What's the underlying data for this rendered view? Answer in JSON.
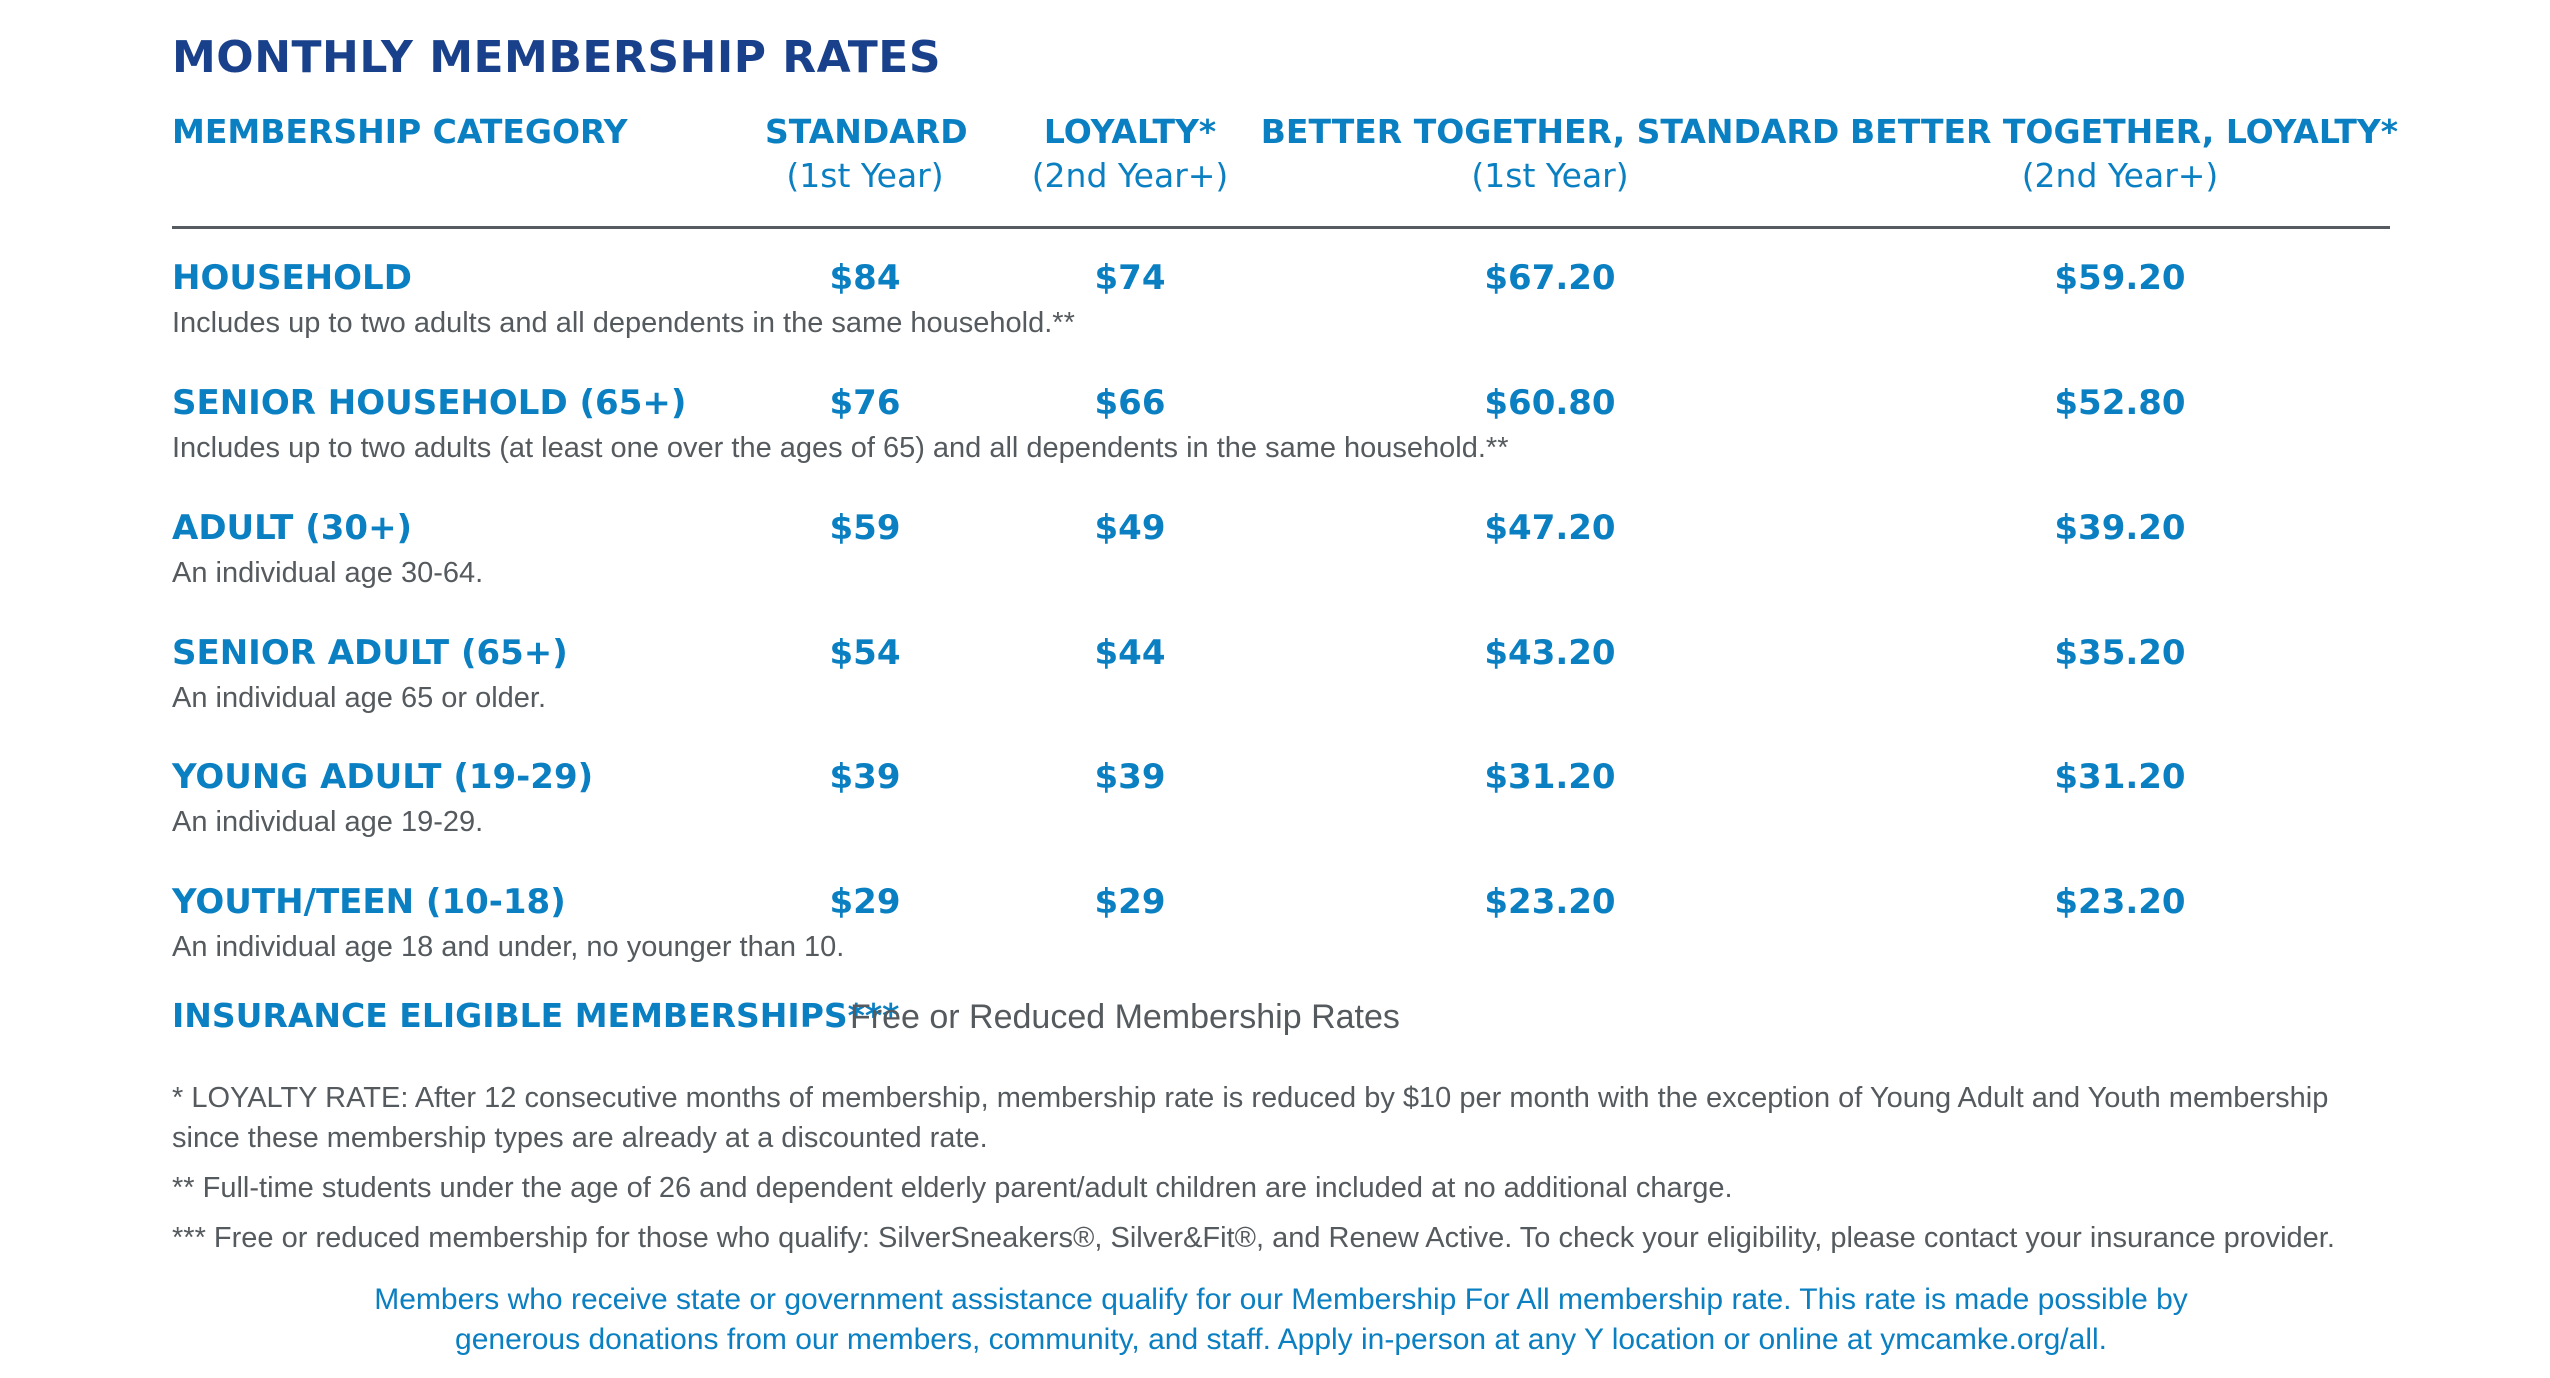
{
  "title": "MONTHLY MEMBERSHIP RATES",
  "headers": {
    "category": "MEMBERSHIP CATEGORY",
    "standard": "STANDARD",
    "standard_sub": "(1st Year)",
    "loyalty": "LOYALTY*",
    "loyalty_sub": "(2nd Year+)",
    "bt_standard": "BETTER TOGETHER, STANDARD",
    "bt_standard_sub": "(1st Year)",
    "bt_loyalty": "BETTER TOGETHER, LOYALTY*",
    "bt_loyalty_sub": "(2nd Year+)"
  },
  "rows": [
    {
      "name": "HOUSEHOLD",
      "desc": "Includes up to two adults and all dependents in the same household.**",
      "standard": "$84",
      "loyalty": "$74",
      "bt_standard": "$67.20",
      "bt_loyalty": "$59.20"
    },
    {
      "name": "SENIOR HOUSEHOLD (65+)",
      "desc": "Includes up to two adults (at least one over the ages of 65) and all dependents in the same household.**",
      "standard": "$76",
      "loyalty": "$66",
      "bt_standard": "$60.80",
      "bt_loyalty": "$52.80"
    },
    {
      "name": "ADULT (30+)",
      "desc": "An individual age 30-64.",
      "standard": "$59",
      "loyalty": "$49",
      "bt_standard": "$47.20",
      "bt_loyalty": "$39.20"
    },
    {
      "name": "SENIOR ADULT (65+)",
      "desc": "An individual age 65 or older.",
      "standard": "$54",
      "loyalty": "$44",
      "bt_standard": "$43.20",
      "bt_loyalty": "$35.20"
    },
    {
      "name": "YOUNG ADULT (19-29)",
      "desc": "An individual age 19-29.",
      "standard": "$39",
      "loyalty": "$39",
      "bt_standard": "$31.20",
      "bt_loyalty": "$31.20"
    },
    {
      "name": "YOUTH/TEEN (10-18)",
      "desc": "An individual age 18 and under, no younger than 10.",
      "standard": "$29",
      "loyalty": "$29",
      "bt_standard": "$23.20",
      "bt_loyalty": "$23.20"
    }
  ],
  "insurance": {
    "label": "INSURANCE ELIGIBLE MEMBERSHIPS***",
    "text": "Free or Reduced Membership Rates"
  },
  "notes": {
    "loyalty": "* LOYALTY RATE: After 12 consecutive months of membership, membership rate is reduced by $10 per month with the exception of Young Adult and Youth membership since these membership types are already at a discounted rate.",
    "students": "** Full-time students under the age of 26 and dependent elderly parent/adult children are included at no additional charge.",
    "insurance": "*** Free or reduced membership for those who qualify: SilverSneakers®, Silver&Fit®, and Renew Active. To check your eligibility, please contact your insurance provider."
  },
  "footer": {
    "line1": "Members who receive state or government assistance qualify for our Membership For All membership rate. This rate is made possible by",
    "line2": "generous donations from our members, community, and staff. Apply in-person at any Y location or online at ymcamke.org/all."
  },
  "colors": {
    "title": "#19408a",
    "accent": "#0a7fc1",
    "body_text": "#555a5e",
    "rule": "#555b60"
  }
}
